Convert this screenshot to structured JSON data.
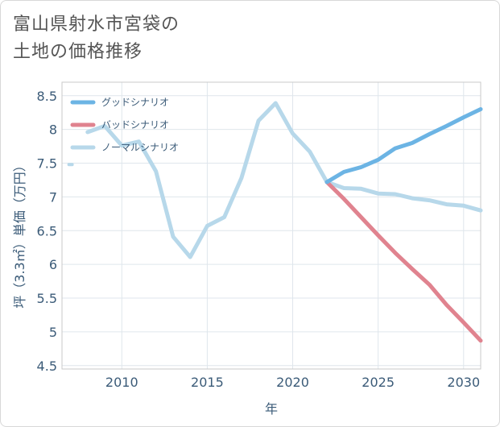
{
  "page": {
    "title_line1": "富山県射水市宮袋の",
    "title_line2": "土地の価格推移"
  },
  "chart_data": {
    "type": "line",
    "title": "富山県射水市宮袋の土地の価格推移",
    "xlabel": "年",
    "ylabel": "坪（3.3㎡）単価（万円）",
    "xlim": [
      2006.5,
      2031
    ],
    "ylim": [
      4.45,
      8.7
    ],
    "xticks": [
      2010,
      2015,
      2020,
      2025,
      2030
    ],
    "yticks": [
      4.5,
      5,
      5.5,
      6,
      6.5,
      7,
      7.5,
      8,
      8.5
    ],
    "ytick_labels": [
      "4.5",
      "5",
      "5.5",
      "6",
      "6.5",
      "7",
      "7.5",
      "8",
      "8.5"
    ],
    "legend_position": "top-left",
    "series": [
      {
        "name": "グッドシナリオ",
        "color": "#6cb4e4",
        "x": [
          2022,
          2023,
          2024,
          2025,
          2026,
          2027,
          2028,
          2029,
          2030,
          2031
        ],
        "values": [
          7.22,
          7.37,
          7.44,
          7.55,
          7.72,
          7.8,
          7.93,
          8.05,
          8.18,
          8.3
        ]
      },
      {
        "name": "バッドシナリオ",
        "color": "#e0838f",
        "x": [
          2022,
          2023,
          2024,
          2025,
          2026,
          2027,
          2028,
          2029,
          2030,
          2031
        ],
        "values": [
          7.22,
          6.97,
          6.7,
          6.43,
          6.17,
          5.93,
          5.7,
          5.4,
          5.14,
          4.87
        ]
      },
      {
        "name": "ノーマルシナリオ",
        "color": "#b7d8ea",
        "segments": [
          {
            "x": [
              2007
            ],
            "values": [
              7.48
            ]
          },
          {
            "x": [
              2008,
              2009,
              2010,
              2011,
              2012,
              2013,
              2014,
              2015,
              2016,
              2017,
              2018,
              2019,
              2020,
              2021,
              2022,
              2023,
              2024,
              2025,
              2026,
              2027,
              2028,
              2029,
              2030,
              2031
            ],
            "values": [
              7.96,
              8.05,
              7.76,
              7.82,
              7.38,
              6.41,
              6.11,
              6.57,
              6.7,
              7.28,
              8.13,
              8.39,
              7.94,
              7.67,
              7.22,
              7.13,
              7.12,
              7.05,
              7.04,
              6.98,
              6.95,
              6.89,
              6.87,
              6.8
            ]
          }
        ]
      }
    ]
  }
}
